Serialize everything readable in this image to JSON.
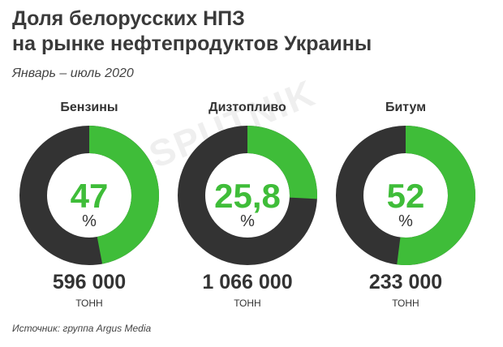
{
  "title_line1": "Доля белорусских НПЗ",
  "title_line2": "на рынке нефтепродуктов Украины",
  "subtitle": "Январь – июль 2020",
  "watermark": "SPUTNIK",
  "source": "Источник: группа Argus Media",
  "colors": {
    "share": "#3fbd39",
    "rest": "#333333",
    "text": "#333333"
  },
  "chart_data": [
    {
      "type": "pie",
      "title": "Бензины",
      "value": 47,
      "value_label": "47",
      "unit": "%",
      "volume": "596 000",
      "volume_unit": "ТОНН"
    },
    {
      "type": "pie",
      "title": "Дизтопливо",
      "value": 25.8,
      "value_label": "25,8",
      "unit": "%",
      "volume": "1 066 000",
      "volume_unit": "ТОНН"
    },
    {
      "type": "pie",
      "title": "Битум",
      "value": 52,
      "value_label": "52",
      "unit": "%",
      "volume": "233 000",
      "volume_unit": "ТОНН"
    }
  ]
}
